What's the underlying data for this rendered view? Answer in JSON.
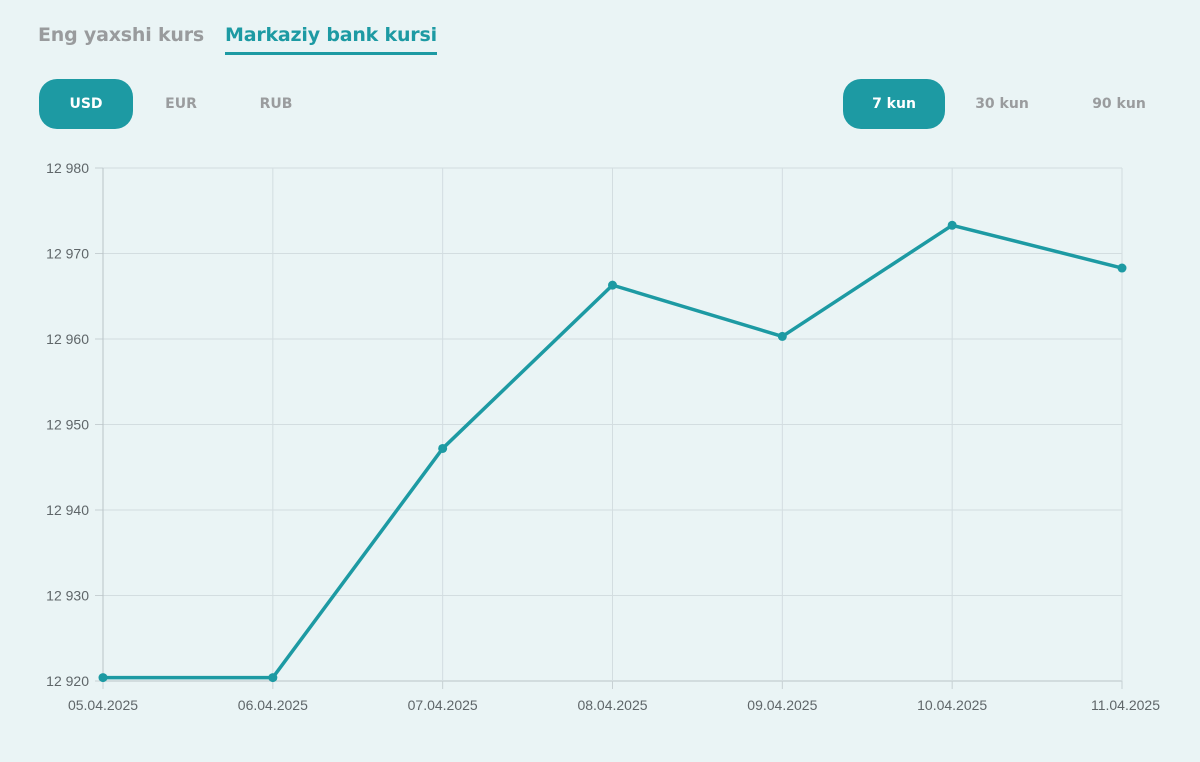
{
  "tabs": [
    {
      "label": "Eng yaxshi kurs",
      "active": false
    },
    {
      "label": "Markaziy bank kursi",
      "active": true
    }
  ],
  "currencies": [
    {
      "label": "USD",
      "active": true
    },
    {
      "label": "EUR",
      "active": false
    },
    {
      "label": "RUB",
      "active": false
    }
  ],
  "periods": [
    {
      "label": "7 kun",
      "active": true
    },
    {
      "label": "30 kun",
      "active": false
    },
    {
      "label": "90 kun",
      "active": false
    }
  ],
  "colors": {
    "accent": "#1d9aa3",
    "background": "#eaf4f5",
    "grid": "#d3dde0",
    "inactive_text": "#999b9d"
  },
  "chart_data": {
    "type": "line",
    "title": "",
    "xlabel": "",
    "ylabel": "",
    "x": [
      "05.04.2025",
      "06.04.2025",
      "07.04.2025",
      "08.04.2025",
      "09.04.2025",
      "10.04.2025",
      "11.04.2025"
    ],
    "series": [
      {
        "values": [
          12920.4,
          12920.4,
          12947.2,
          12966.3,
          12960.3,
          12973.3,
          12968.3
        ]
      }
    ],
    "ylim": [
      12920,
      12980
    ],
    "yticks": [
      12920,
      12930,
      12940,
      12950,
      12960,
      12970,
      12980
    ],
    "ytick_labels": [
      "12 920",
      "12 930",
      "12 940",
      "12 950",
      "12 960",
      "12 970",
      "12 980"
    ],
    "grid": true,
    "markers": true
  }
}
